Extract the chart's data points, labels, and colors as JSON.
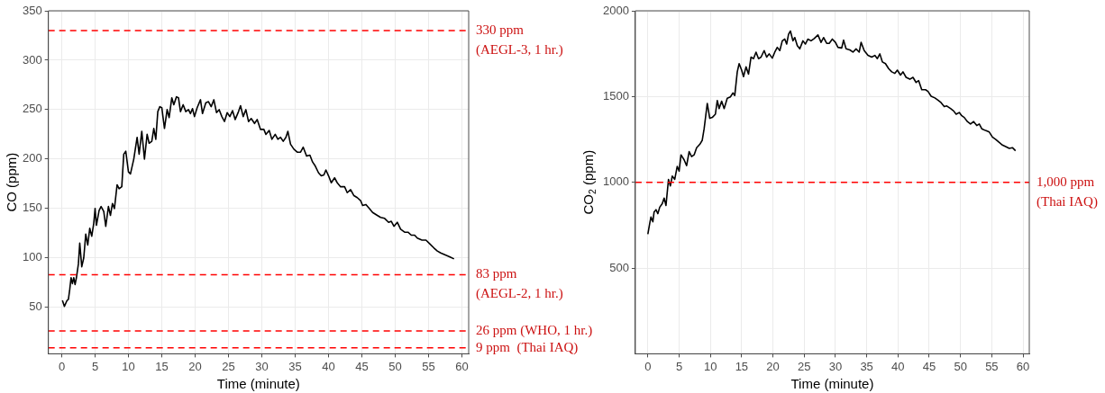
{
  "chart_data": [
    {
      "type": "line",
      "xlabel": "Time (minute)",
      "ylabel": "CO (ppm)",
      "xlim": [
        -2,
        61
      ],
      "ylim": [
        3,
        350
      ],
      "xticks": [
        0,
        5,
        10,
        15,
        20,
        25,
        30,
        35,
        40,
        45,
        50,
        55,
        60
      ],
      "yticks": [
        50,
        100,
        150,
        200,
        250,
        300,
        350
      ],
      "grid": true,
      "legend": false,
      "marker": "none",
      "line_style": "solid",
      "series": [
        {
          "color": "#000000",
          "x": [
            0.1,
            0.4,
            0.8,
            1.0,
            1.2,
            1.4,
            1.6,
            1.8,
            2.0,
            2.2,
            2.5,
            2.7,
            3.0,
            3.3,
            3.6,
            3.9,
            4.2,
            4.5,
            4.8,
            5.0,
            5.2,
            5.6,
            5.9,
            6.3,
            6.6,
            7.0,
            7.3,
            7.6,
            7.9,
            8.3,
            8.6,
            9.0,
            9.3,
            9.6,
            10.0,
            10.3,
            10.8,
            11.3,
            11.6,
            12.0,
            12.4,
            12.8,
            13.1,
            13.5,
            13.8,
            14.1,
            14.4,
            14.7,
            15.0,
            15.4,
            15.8,
            16.1,
            16.5,
            16.8,
            17.2,
            17.5,
            17.8,
            18.2,
            18.6,
            19.0,
            19.3,
            19.6,
            19.9,
            20.3,
            20.8,
            21.1,
            21.6,
            22.0,
            22.4,
            22.8,
            23.2,
            23.6,
            24.0,
            24.4,
            24.8,
            25.2,
            25.6,
            26.0,
            26.5,
            26.8,
            27.2,
            27.6,
            28.0,
            28.4,
            28.9,
            29.3,
            29.8,
            30.3,
            30.6,
            31.1,
            31.5,
            32.0,
            32.4,
            32.8,
            33.2,
            33.6,
            33.9,
            34.3,
            34.8,
            35.3,
            35.8,
            36.2,
            36.7,
            37.2,
            37.6,
            38.0,
            38.5,
            38.9,
            39.3,
            39.6,
            40.0,
            40.4,
            40.9,
            41.3,
            41.8,
            42.4,
            42.8,
            43.3,
            43.8,
            44.3,
            44.8,
            45.1,
            45.6,
            46.1,
            46.6,
            47.3,
            47.8,
            48.4,
            49.0,
            49.4,
            49.8,
            50.3,
            50.8,
            51.4,
            51.9,
            52.4,
            52.9,
            53.3,
            54.0,
            54.6,
            55.2,
            55.8,
            56.3,
            56.8,
            57.5,
            58.2,
            58.8
          ],
          "values": [
            57,
            51,
            57,
            58,
            68,
            80,
            74,
            80,
            73,
            80,
            94,
            115,
            91,
            100,
            124,
            113,
            130,
            122,
            135,
            150,
            133,
            148,
            152,
            147,
            132,
            152,
            143,
            155,
            150,
            174,
            170,
            172,
            205,
            208,
            187,
            185,
            200,
            222,
            205,
            228,
            200,
            225,
            216,
            218,
            231,
            220,
            248,
            253,
            252,
            231,
            250,
            242,
            262,
            255,
            263,
            262,
            248,
            255,
            248,
            250,
            246,
            251,
            243,
            252,
            260,
            246,
            257,
            258,
            253,
            260,
            247,
            250,
            243,
            238,
            247,
            243,
            249,
            240,
            248,
            254,
            243,
            250,
            238,
            241,
            236,
            240,
            230,
            230,
            225,
            229,
            220,
            225,
            220,
            222,
            218,
            222,
            228,
            215,
            210,
            207,
            207,
            212,
            203,
            204,
            197,
            193,
            186,
            183,
            184,
            189,
            183,
            176,
            181,
            176,
            172,
            172,
            166,
            169,
            163,
            161,
            158,
            153,
            154,
            150,
            146,
            143,
            141,
            140,
            136,
            137,
            132,
            136,
            129,
            126,
            126,
            123,
            123,
            120,
            118,
            118,
            114,
            110,
            107,
            105,
            103,
            101,
            99
          ]
        }
      ],
      "ref_lines": [
        {
          "axis": "y",
          "value": 330,
          "label": "330 ppm\n(AEGL-3, 1 hr.)",
          "color": "#ff0000",
          "line_style": "dashed"
        },
        {
          "axis": "y",
          "value": 83,
          "label": "83 ppm\n(AEGL-2, 1 hr.)",
          "color": "#ff0000",
          "line_style": "dashed"
        },
        {
          "axis": "y",
          "value": 26,
          "label": "26 ppm (WHO, 1 hr.)",
          "color": "#ff0000",
          "line_style": "dashed"
        },
        {
          "axis": "y",
          "value": 9,
          "label": "9 ppm  (Thai IAQ)",
          "color": "#ff0000",
          "line_style": "dashed"
        }
      ]
    },
    {
      "type": "line",
      "xlabel": "Time (minute)",
      "ylabel": "CO$_{2}$ (ppm)",
      "xlim": [
        -2,
        61
      ],
      "ylim": [
        0,
        2000
      ],
      "xticks": [
        0,
        5,
        10,
        15,
        20,
        25,
        30,
        35,
        40,
        45,
        50,
        55,
        60
      ],
      "yticks": [
        500,
        1000,
        1500,
        2000
      ],
      "grid": true,
      "legend": false,
      "marker": "none",
      "line_style": "solid",
      "series": [
        {
          "color": "#000000",
          "x": [
            0,
            0.3,
            0.5,
            0.8,
            1.0,
            1.3,
            1.6,
            1.9,
            2.3,
            2.6,
            2.9,
            3.3,
            3.6,
            3.9,
            4.3,
            4.7,
            5.0,
            5.3,
            5.8,
            6.2,
            6.6,
            7.0,
            7.4,
            7.8,
            8.3,
            8.7,
            9.0,
            9.5,
            9.9,
            10.3,
            10.8,
            11.1,
            11.4,
            11.8,
            12.2,
            12.7,
            13.2,
            13.6,
            13.9,
            14.3,
            14.6,
            15.0,
            15.3,
            15.7,
            16.1,
            16.5,
            16.9,
            17.3,
            17.7,
            18.1,
            18.6,
            19.0,
            19.4,
            19.9,
            20.3,
            20.7,
            21.1,
            21.5,
            21.9,
            22.2,
            22.5,
            22.8,
            23.2,
            23.5,
            23.9,
            24.3,
            24.8,
            25.2,
            25.6,
            26.1,
            26.6,
            27.2,
            27.7,
            28.1,
            28.6,
            29.0,
            29.5,
            30.0,
            30.4,
            31.0,
            31.3,
            31.7,
            32.3,
            32.8,
            33.3,
            33.8,
            34.1,
            34.6,
            35.2,
            35.8,
            36.3,
            36.7,
            37.1,
            37.5,
            38.0,
            38.5,
            39.0,
            39.5,
            39.9,
            40.4,
            40.8,
            41.3,
            41.9,
            42.4,
            42.9,
            43.3,
            43.8,
            44.4,
            44.8,
            45.3,
            45.9,
            46.4,
            46.9,
            47.4,
            47.8,
            48.4,
            48.9,
            49.3,
            49.8,
            50.2,
            50.6,
            51.1,
            51.6,
            52.1,
            52.6,
            53.0,
            53.4,
            54.0,
            54.6,
            55.1,
            55.6,
            56.2,
            56.7,
            57.3,
            57.8,
            58.3,
            58.8
          ],
          "values": [
            698,
            760,
            798,
            770,
            827,
            840,
            817,
            855,
            875,
            908,
            865,
            1017,
            979,
            1036,
            1017,
            1093,
            1065,
            1160,
            1131,
            1097,
            1179,
            1150,
            1160,
            1202,
            1221,
            1245,
            1312,
            1460,
            1373,
            1378,
            1397,
            1477,
            1430,
            1473,
            1430,
            1490,
            1498,
            1521,
            1506,
            1644,
            1692,
            1654,
            1616,
            1673,
            1631,
            1730,
            1721,
            1759,
            1721,
            1730,
            1768,
            1730,
            1749,
            1724,
            1759,
            1787,
            1768,
            1825,
            1835,
            1806,
            1863,
            1882,
            1825,
            1844,
            1797,
            1778,
            1825,
            1806,
            1835,
            1825,
            1838,
            1859,
            1816,
            1844,
            1810,
            1810,
            1835,
            1816,
            1787,
            1783,
            1829,
            1778,
            1772,
            1759,
            1778,
            1759,
            1816,
            1768,
            1740,
            1730,
            1740,
            1721,
            1749,
            1702,
            1692,
            1663,
            1644,
            1635,
            1654,
            1625,
            1644,
            1612,
            1601,
            1612,
            1582,
            1593,
            1540,
            1540,
            1530,
            1502,
            1492,
            1479,
            1464,
            1441,
            1445,
            1430,
            1416,
            1397,
            1407,
            1388,
            1378,
            1354,
            1340,
            1354,
            1331,
            1340,
            1312,
            1302,
            1293,
            1264,
            1251,
            1232,
            1217,
            1207,
            1198,
            1202,
            1184
          ]
        }
      ],
      "ref_lines": [
        {
          "axis": "y",
          "value": 1000,
          "label": "1,000 ppm\n(Thai IAQ)",
          "color": "#ff0000",
          "line_style": "dashed"
        }
      ]
    }
  ]
}
